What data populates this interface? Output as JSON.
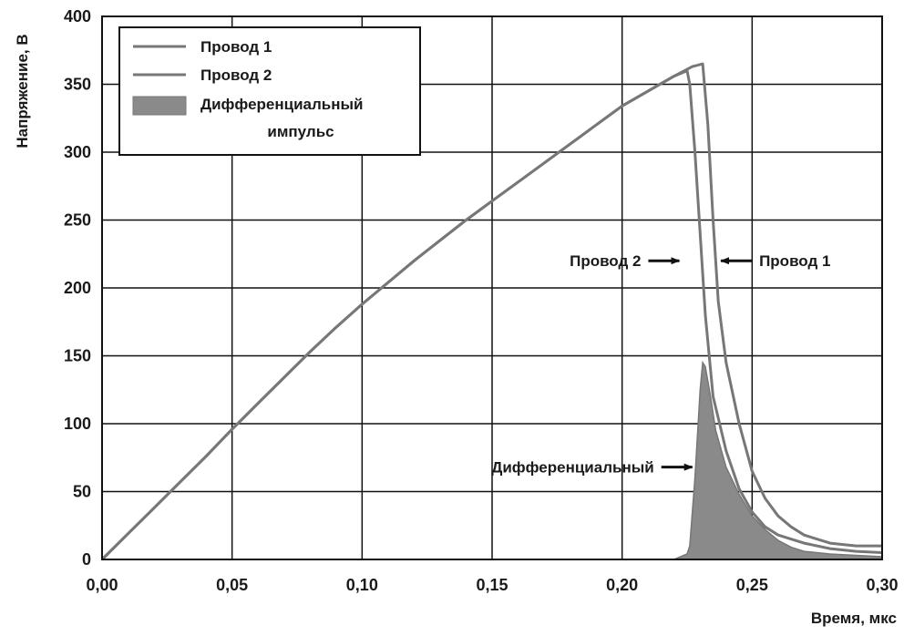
{
  "chart_data": {
    "type": "area",
    "xlabel": "Время, мкс",
    "ylabel": "Напряжение, В",
    "xlim": [
      0,
      0.3
    ],
    "ylim": [
      0,
      400
    ],
    "x_ticks": [
      0,
      0.05,
      0.1,
      0.15,
      0.2,
      0.25,
      0.3
    ],
    "x_tick_labels": [
      "0,00",
      "0,05",
      "0,10",
      "0,15",
      "0,20",
      "0,25",
      "0,30"
    ],
    "y_ticks": [
      0,
      50,
      100,
      150,
      200,
      250,
      300,
      350,
      400
    ],
    "y_tick_labels": [
      "0",
      "50",
      "100",
      "150",
      "200",
      "250",
      "300",
      "350",
      "400"
    ],
    "grid": true,
    "legend_position": "top-left",
    "colors": {
      "line": "#777777",
      "fill": "#8a8a8a",
      "grid": "#111111",
      "arrow": "#111111"
    },
    "legend": {
      "items": [
        {
          "label": "Провод 1",
          "kind": "line"
        },
        {
          "label": "Провод 2",
          "kind": "line"
        },
        {
          "label": "Дифференциальный",
          "label2": "импульс",
          "kind": "fill"
        }
      ]
    },
    "series": [
      {
        "name": "Провод 1",
        "kind": "line",
        "points": [
          [
            0,
            0
          ],
          [
            0.01,
            19
          ],
          [
            0.02,
            38
          ],
          [
            0.03,
            57
          ],
          [
            0.04,
            76
          ],
          [
            0.05,
            96
          ],
          [
            0.06,
            115
          ],
          [
            0.07,
            134
          ],
          [
            0.08,
            153
          ],
          [
            0.09,
            171
          ],
          [
            0.1,
            188
          ],
          [
            0.11,
            204
          ],
          [
            0.12,
            220
          ],
          [
            0.13,
            235
          ],
          [
            0.14,
            250
          ],
          [
            0.15,
            264
          ],
          [
            0.16,
            278
          ],
          [
            0.17,
            292
          ],
          [
            0.18,
            306
          ],
          [
            0.19,
            320
          ],
          [
            0.2,
            334
          ],
          [
            0.21,
            345
          ],
          [
            0.22,
            356
          ],
          [
            0.227,
            363
          ],
          [
            0.231,
            365
          ],
          [
            0.233,
            320
          ],
          [
            0.235,
            250
          ],
          [
            0.237,
            190
          ],
          [
            0.24,
            145
          ],
          [
            0.245,
            100
          ],
          [
            0.25,
            65
          ],
          [
            0.255,
            45
          ],
          [
            0.26,
            32
          ],
          [
            0.265,
            24
          ],
          [
            0.27,
            18
          ],
          [
            0.28,
            12
          ],
          [
            0.29,
            10
          ],
          [
            0.3,
            10
          ]
        ]
      },
      {
        "name": "Провод 2",
        "kind": "line",
        "points": [
          [
            0,
            0
          ],
          [
            0.01,
            19
          ],
          [
            0.02,
            38
          ],
          [
            0.03,
            57
          ],
          [
            0.04,
            76
          ],
          [
            0.05,
            96
          ],
          [
            0.06,
            115
          ],
          [
            0.07,
            134
          ],
          [
            0.08,
            153
          ],
          [
            0.09,
            171
          ],
          [
            0.1,
            188
          ],
          [
            0.11,
            204
          ],
          [
            0.12,
            220
          ],
          [
            0.13,
            235
          ],
          [
            0.14,
            250
          ],
          [
            0.15,
            264
          ],
          [
            0.16,
            278
          ],
          [
            0.17,
            292
          ],
          [
            0.18,
            306
          ],
          [
            0.19,
            320
          ],
          [
            0.2,
            334
          ],
          [
            0.21,
            345
          ],
          [
            0.22,
            356
          ],
          [
            0.225,
            360
          ],
          [
            0.226,
            350
          ],
          [
            0.228,
            300
          ],
          [
            0.23,
            240
          ],
          [
            0.232,
            180
          ],
          [
            0.235,
            120
          ],
          [
            0.24,
            80
          ],
          [
            0.245,
            52
          ],
          [
            0.25,
            35
          ],
          [
            0.255,
            24
          ],
          [
            0.26,
            18
          ],
          [
            0.27,
            12
          ],
          [
            0.28,
            8
          ],
          [
            0.29,
            6
          ],
          [
            0.3,
            5
          ]
        ]
      },
      {
        "name": "Дифференциальный импульс",
        "kind": "fill",
        "points": [
          [
            0,
            0
          ],
          [
            0.22,
            0
          ],
          [
            0.225,
            4
          ],
          [
            0.226,
            10
          ],
          [
            0.228,
            60
          ],
          [
            0.23,
            125
          ],
          [
            0.231,
            145
          ],
          [
            0.232,
            142
          ],
          [
            0.234,
            120
          ],
          [
            0.236,
            95
          ],
          [
            0.24,
            68
          ],
          [
            0.245,
            48
          ],
          [
            0.25,
            32
          ],
          [
            0.255,
            22
          ],
          [
            0.26,
            14
          ],
          [
            0.265,
            9
          ],
          [
            0.27,
            6
          ],
          [
            0.28,
            4
          ],
          [
            0.29,
            3
          ],
          [
            0.3,
            2
          ],
          [
            0.3,
            0
          ]
        ]
      }
    ],
    "annotations": [
      {
        "text": "Провод 2",
        "x": 0.222,
        "y": 220,
        "arrow": "right",
        "align": "end"
      },
      {
        "text": "Провод 1",
        "x": 0.238,
        "y": 220,
        "arrow": "left",
        "align": "start"
      },
      {
        "text": "Дифференциальный",
        "x": 0.227,
        "y": 68,
        "arrow": "right",
        "align": "end"
      }
    ]
  }
}
